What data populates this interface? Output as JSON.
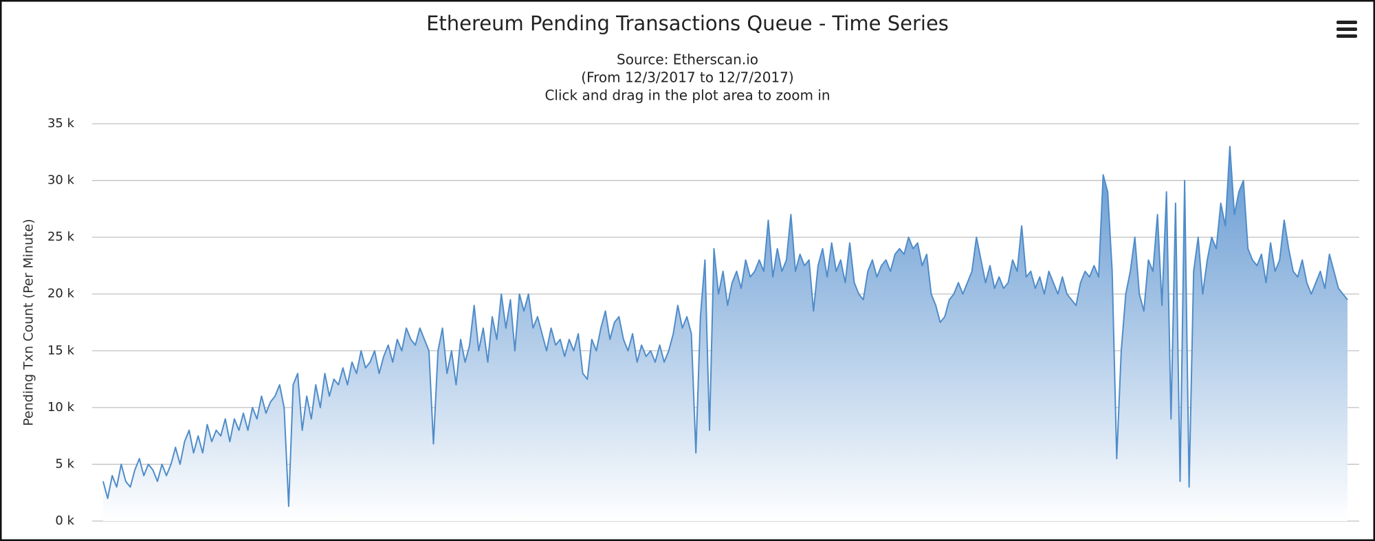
{
  "chart_data": {
    "type": "area",
    "title": "Ethereum Pending Transactions Queue - Time Series",
    "subtitle": [
      "Source: Etherscan.io",
      "(From 12/3/2017 to 12/7/2017)",
      "Click and drag in the plot area to zoom in"
    ],
    "y_label": "Pending Txn Count (Per Minute)",
    "color": "#4f8cc9",
    "ylim": [
      0,
      35000
    ],
    "yticks": [
      {
        "value": 0,
        "label": "0 k"
      },
      {
        "value": 5000,
        "label": "5 k"
      },
      {
        "value": 10000,
        "label": "10 k"
      },
      {
        "value": 15000,
        "label": "15 k"
      },
      {
        "value": 20000,
        "label": "20 k"
      },
      {
        "value": 25000,
        "label": "25 k"
      },
      {
        "value": 30000,
        "label": "30 k"
      },
      {
        "value": 35000,
        "label": "35 k"
      }
    ],
    "grid": true,
    "values": [
      3500,
      2000,
      4000,
      3000,
      5000,
      3500,
      3000,
      4500,
      5500,
      4000,
      5000,
      4500,
      3500,
      5000,
      4000,
      5000,
      6500,
      5000,
      7000,
      8000,
      6000,
      7500,
      6000,
      8500,
      7000,
      8000,
      7500,
      9000,
      7000,
      9000,
      8000,
      9500,
      8000,
      10000,
      9000,
      11000,
      9500,
      10500,
      11000,
      12000,
      10000,
      1300,
      12000,
      13000,
      8000,
      11000,
      9000,
      12000,
      10000,
      13000,
      11000,
      12500,
      12000,
      13500,
      12000,
      14000,
      13000,
      15000,
      13500,
      14000,
      15000,
      13000,
      14500,
      15500,
      14000,
      16000,
      15000,
      17000,
      16000,
      15500,
      17000,
      16000,
      15000,
      6800,
      15000,
      17000,
      13000,
      15000,
      12000,
      16000,
      14000,
      15500,
      19000,
      15000,
      17000,
      14000,
      18000,
      16000,
      20000,
      17000,
      19500,
      15000,
      20000,
      18500,
      20000,
      17000,
      18000,
      16500,
      15000,
      17000,
      15500,
      16000,
      14500,
      16000,
      15000,
      16500,
      13000,
      12500,
      16000,
      15000,
      17000,
      18500,
      16000,
      17500,
      18000,
      16000,
      15000,
      16500,
      14000,
      15500,
      14500,
      15000,
      14000,
      15500,
      14000,
      15000,
      16500,
      19000,
      17000,
      18000,
      16500,
      6000,
      18000,
      23000,
      8000,
      24000,
      20000,
      22000,
      19000,
      21000,
      22000,
      20500,
      23000,
      21500,
      22000,
      23000,
      22000,
      26500,
      21500,
      24000,
      22000,
      23000,
      27000,
      22000,
      23500,
      22500,
      23000,
      18500,
      22500,
      24000,
      21500,
      24500,
      22000,
      23000,
      21000,
      24500,
      21000,
      20000,
      19500,
      22000,
      23000,
      21500,
      22500,
      23000,
      22000,
      23500,
      24000,
      23500,
      25000,
      24000,
      24500,
      22500,
      23500,
      20000,
      19000,
      17500,
      18000,
      19500,
      20000,
      21000,
      20000,
      21000,
      22000,
      25000,
      23000,
      21000,
      22500,
      20500,
      21500,
      20500,
      21000,
      23000,
      22000,
      26000,
      21500,
      22000,
      20500,
      21500,
      20000,
      22000,
      21000,
      20000,
      21500,
      20000,
      19500,
      19000,
      21000,
      22000,
      21500,
      22500,
      21500,
      30500,
      29000,
      22000,
      5500,
      15000,
      20000,
      22000,
      25000,
      20000,
      18500,
      23000,
      22000,
      27000,
      19000,
      29000,
      9000,
      28000,
      3500,
      30000,
      3000,
      22000,
      25000,
      20000,
      23000,
      25000,
      24000,
      28000,
      26000,
      33000,
      27000,
      29000,
      30000,
      24000,
      23000,
      22500,
      23500,
      21000,
      24500,
      22000,
      23000,
      26500,
      24000,
      22000,
      21500,
      23000,
      21000,
      20000,
      21000,
      22000,
      20500,
      23500,
      22000,
      20500,
      20000,
      19500
    ]
  }
}
